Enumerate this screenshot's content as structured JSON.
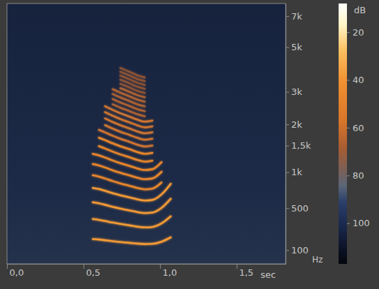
{
  "chart_data": {
    "type": "line",
    "x_label": "sec",
    "y_label": "Hz",
    "xlim": [
      0,
      1.82
    ],
    "xticks": [
      {
        "value": 0,
        "label": "0,0"
      },
      {
        "value": 0.5,
        "label": "0,5"
      },
      {
        "value": 1,
        "label": "1,0"
      },
      {
        "value": 1.5,
        "label": "1,5"
      }
    ],
    "ylim": [
      0,
      8000
    ],
    "yticks": [
      100,
      500,
      {
        "value": 1000,
        "label": "1k"
      },
      {
        "value": 1500,
        "label": "1,5k"
      },
      {
        "value": 2000,
        "label": "2k"
      },
      {
        "value": 3000,
        "label": "3k"
      },
      {
        "value": 5000,
        "label": "5k"
      },
      {
        "value": 7000,
        "label": "7k"
      }
    ],
    "colorbar_label": "dB",
    "colorbar_lim": [
      8,
      117
    ],
    "colorbar_ticks": [
      20,
      40,
      60,
      80,
      100
    ],
    "x": [
      0.56,
      0.6,
      0.64,
      0.69,
      0.74,
      0.8,
      0.85,
      0.9,
      0.95,
      1.01,
      1.07
    ],
    "series": [
      {
        "color": "#f39a35",
        "values": [
          190,
          186,
          180,
          172,
          165,
          158,
          152,
          148,
          150,
          168,
          205
        ]
      },
      {
        "color": "#f39a35",
        "values": [
          380,
          372,
          360,
          344,
          330,
          316,
          304,
          296,
          300,
          336,
          410
        ]
      },
      {
        "color": "#f39a35",
        "values": [
          570,
          558,
          540,
          516,
          495,
          474,
          456,
          444,
          450,
          504,
          615
        ]
      },
      {
        "color": "#f39a35",
        "values": [
          760,
          744,
          720,
          688,
          660,
          632,
          608,
          592,
          600,
          672,
          820
        ]
      },
      {
        "color": "#e8862c",
        "values": [
          950,
          930,
          900,
          860,
          825,
          790,
          760,
          740,
          750,
          840,
          null
        ]
      },
      {
        "color": "#e8862c",
        "values": [
          1140,
          1116,
          1080,
          1032,
          990,
          948,
          912,
          888,
          900,
          1008,
          null
        ]
      },
      {
        "color": "#e8862c",
        "values": [
          1330,
          1302,
          1260,
          1204,
          1155,
          1106,
          1064,
          1036,
          1050,
          1176,
          null
        ]
      },
      {
        "color": "#e8862c",
        "values": [
          null,
          1488,
          1440,
          1376,
          1320,
          1264,
          1216,
          1184,
          1200,
          null,
          null
        ]
      },
      {
        "color": "#e8862c",
        "values": [
          null,
          1674,
          1620,
          1548,
          1485,
          1422,
          1368,
          1332,
          1350,
          null,
          null
        ]
      },
      {
        "color": "#cf7530",
        "values": [
          null,
          1860,
          1800,
          1720,
          1650,
          1580,
          1520,
          1480,
          1500,
          null,
          null
        ]
      },
      {
        "color": "#cf7530",
        "values": [
          null,
          null,
          1980,
          1892,
          1815,
          1738,
          1672,
          1628,
          1650,
          null,
          null
        ]
      },
      {
        "color": "#cf7530",
        "values": [
          null,
          null,
          2160,
          2064,
          1980,
          1896,
          1824,
          1776,
          1800,
          null,
          null
        ]
      },
      {
        "color": "#cf7530",
        "values": [
          null,
          null,
          2340,
          2236,
          2145,
          2054,
          1976,
          1924,
          1950,
          null,
          null
        ]
      },
      {
        "color": "#cf7530",
        "values": [
          null,
          null,
          2520,
          2408,
          2310,
          2212,
          2128,
          2072,
          2100,
          null,
          null
        ]
      },
      {
        "color": "#ad6232",
        "values": [
          null,
          null,
          null,
          2580,
          2475,
          2370,
          2280,
          2220,
          null,
          null,
          null
        ]
      },
      {
        "color": "#ad6232",
        "values": [
          null,
          null,
          null,
          2752,
          2640,
          2528,
          2432,
          2368,
          null,
          null,
          null
        ]
      },
      {
        "color": "#ad6232",
        "values": [
          null,
          null,
          null,
          2924,
          2805,
          2686,
          2584,
          2516,
          null,
          null,
          null
        ]
      },
      {
        "color": "#ad6232",
        "values": [
          null,
          null,
          null,
          3096,
          2970,
          2844,
          2736,
          2664,
          null,
          null,
          null
        ]
      },
      {
        "color": "#ad6232",
        "values": [
          null,
          null,
          null,
          null,
          3135,
          3002,
          2888,
          2812,
          null,
          null,
          null
        ]
      },
      {
        "color": "#8a5236",
        "values": [
          null,
          null,
          null,
          null,
          3300,
          3160,
          3040,
          2960,
          null,
          null,
          null
        ]
      },
      {
        "color": "#8a5236",
        "values": [
          null,
          null,
          null,
          null,
          3465,
          3318,
          3192,
          3108,
          null,
          null,
          null
        ]
      },
      {
        "color": "#8a5236",
        "values": [
          null,
          null,
          null,
          null,
          3630,
          3476,
          3344,
          3256,
          null,
          null,
          null
        ]
      },
      {
        "color": "#8a5236",
        "values": [
          null,
          null,
          null,
          null,
          3795,
          3634,
          3496,
          3404,
          null,
          null,
          null
        ]
      },
      {
        "color": "#8a5236",
        "values": [
          null,
          null,
          null,
          null,
          3960,
          3792,
          3648,
          3552,
          null,
          null,
          null
        ]
      }
    ]
  }
}
